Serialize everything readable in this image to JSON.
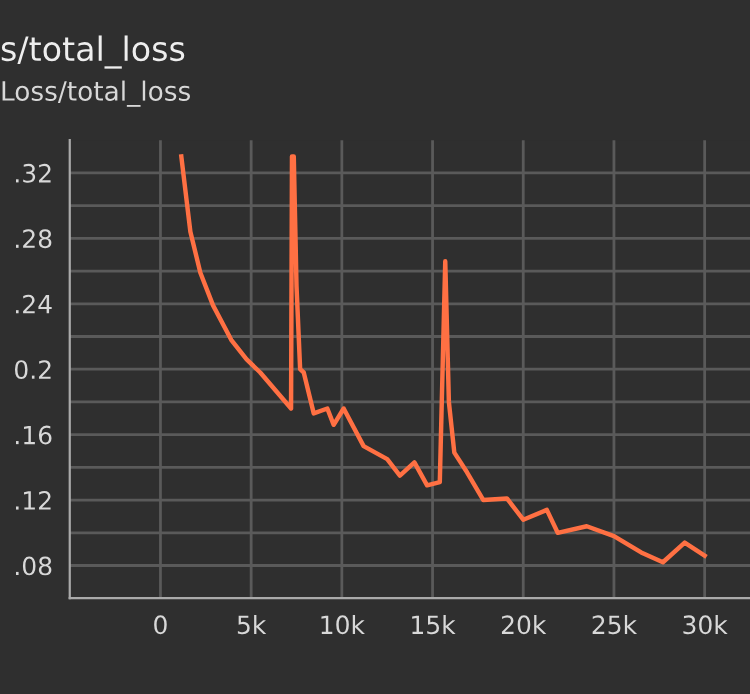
{
  "chart_data": {
    "type": "line",
    "title": "s/total_loss",
    "subtitle": "Loss/total_loss",
    "x": [
      1150,
      1650,
      2200,
      2900,
      3900,
      4750,
      5500,
      7200,
      7250,
      7350,
      7500,
      7700,
      7900,
      8450,
      9200,
      9550,
      10100,
      11200,
      12500,
      13200,
      14000,
      14700,
      15400,
      15700,
      15900,
      16200,
      16900,
      17800,
      19100,
      20000,
      21300,
      21900,
      23500,
      25000,
      26500,
      27700,
      28900,
      30000
    ],
    "series": [
      {
        "color": "#ff7043",
        "values": [
          0.33,
          0.284,
          0.259,
          0.239,
          0.218,
          0.206,
          0.198,
          0.176,
          0.33,
          0.33,
          0.251,
          0.2,
          0.198,
          0.173,
          0.176,
          0.166,
          0.176,
          0.153,
          0.145,
          0.135,
          0.143,
          0.129,
          0.131,
          0.266,
          0.18,
          0.149,
          0.137,
          0.12,
          0.121,
          0.108,
          0.114,
          0.1,
          0.104,
          0.098,
          0.088,
          0.082,
          0.094,
          0.086
        ]
      }
    ],
    "xlim": [
      -5000,
      32500
    ],
    "ylim": [
      0.06,
      0.34
    ],
    "xticks": [
      0,
      {
        "value": 5000,
        "label": "5k"
      },
      {
        "value": 10000,
        "label": "10k"
      },
      {
        "value": 15000,
        "label": "15k"
      },
      {
        "value": 20000,
        "label": "20k"
      },
      {
        "value": 25000,
        "label": "25k"
      },
      {
        "value": 30000,
        "label": "30k"
      }
    ],
    "yticks": [
      {
        "value": 0.08,
        "label": ".08"
      },
      {
        "value": 0.1,
        "label": null
      },
      {
        "value": 0.12,
        "label": ".12"
      },
      {
        "value": 0.14,
        "label": null
      },
      {
        "value": 0.16,
        "label": ".16"
      },
      {
        "value": 0.18,
        "label": null
      },
      {
        "value": 0.2,
        "label": "0.2"
      },
      {
        "value": 0.22,
        "label": null
      },
      {
        "value": 0.24,
        "label": ".24"
      },
      {
        "value": 0.26,
        "label": null
      },
      {
        "value": 0.28,
        "label": ".28"
      },
      {
        "value": 0.3,
        "label": null
      },
      {
        "value": 0.32,
        "label": ".32"
      }
    ],
    "grid": true,
    "marker": "none",
    "line_style": "solid"
  }
}
